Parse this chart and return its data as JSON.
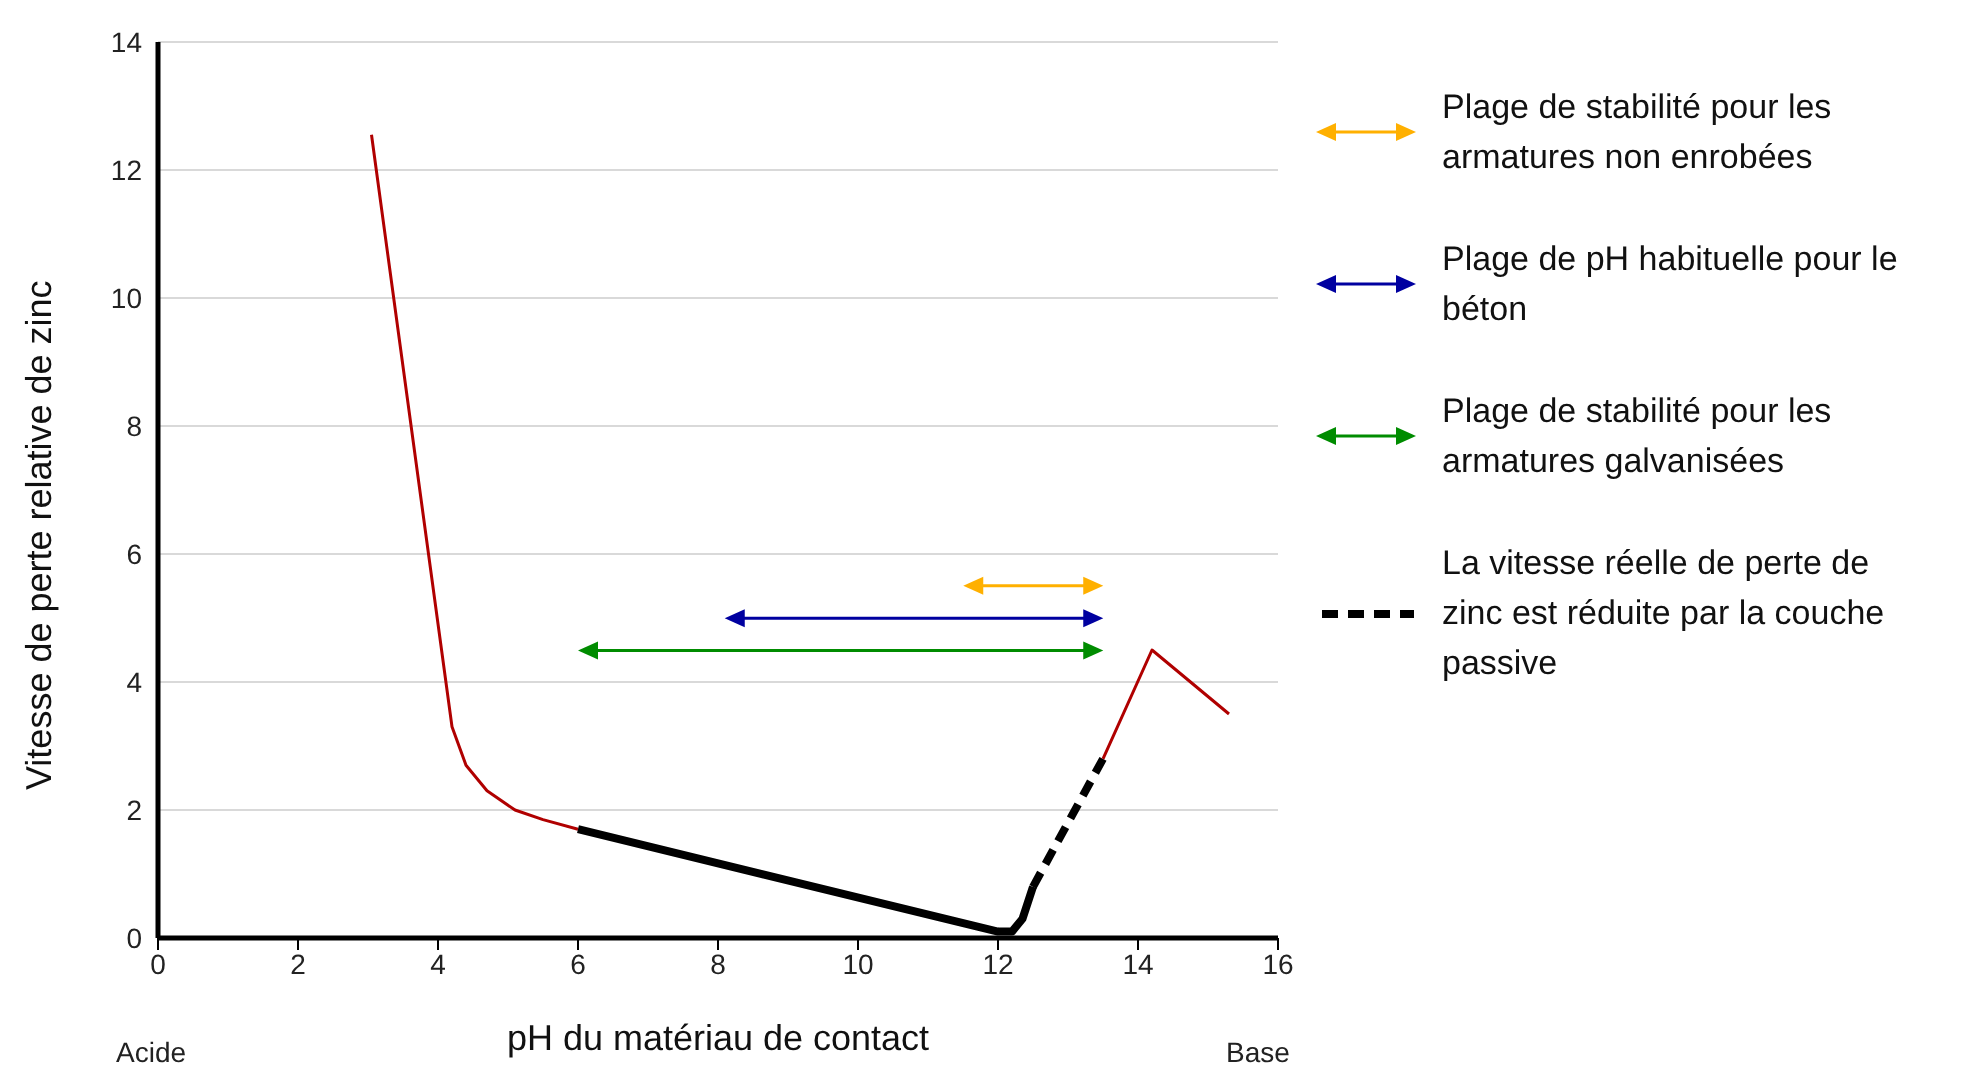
{
  "chart_data": {
    "type": "line",
    "xlabel": "pH du matériau de contact",
    "ylabel": "Vitesse de perte relative de zinc",
    "xlim": [
      0,
      16
    ],
    "xticks": [
      0,
      2,
      4,
      6,
      8,
      10,
      12,
      14,
      16
    ],
    "ylim": [
      0,
      14
    ],
    "yticks": [
      0,
      2,
      4,
      6,
      8,
      10,
      12,
      14
    ],
    "grid": "y",
    "legend": "right",
    "annotations": [
      "Acide",
      "Base",
      "Plage de stabilité pour les armatures non enrobées",
      "Plage de pH habituelle pour le béton",
      "Plage de stabilité pour les armatures galvanisées"
    ],
    "series": [
      {
        "color": "#b00000",
        "x": [
          3.05,
          4.2,
          4.4,
          4.7,
          5.1,
          5.5,
          6
        ],
        "values": [
          12.55,
          3.3,
          2.7,
          2.3,
          2.0,
          1.85,
          1.7
        ]
      },
      {
        "color": "#000000",
        "x": [
          6,
          12,
          12.2,
          12.35,
          12.5
        ],
        "values": [
          1.7,
          0.1,
          0.1,
          0.3,
          0.8
        ]
      },
      {
        "name": "La vitesse réelle de perte de zinc est réduite par la couche passive",
        "color": "#000000",
        "line_style": "dashed",
        "x": [
          12.5,
          13.5
        ],
        "values": [
          0.8,
          2.8
        ]
      },
      {
        "color": "#b00000",
        "x": [
          13.5,
          14.2,
          15.3
        ],
        "values": [
          2.8,
          4.5,
          3.5
        ]
      }
    ]
  }
}
